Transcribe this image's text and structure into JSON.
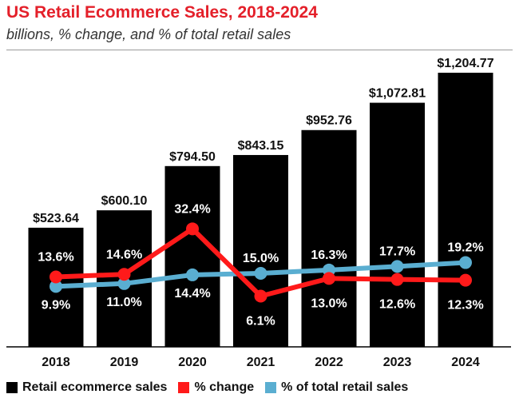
{
  "header": {
    "title": "US Retail Ecommerce Sales, 2018-2024",
    "subtitle": "billions, % change, and % of total retail sales"
  },
  "colors": {
    "bar": "#000000",
    "change_line": "#ff1a1a",
    "share_line": "#5aaed1",
    "title": "#e4202a"
  },
  "chart_data": {
    "type": "bar",
    "title": "US Retail Ecommerce Sales, 2018-2024",
    "subtitle": "billions, % change, and % of total retail sales",
    "categories": [
      "2018",
      "2019",
      "2020",
      "2021",
      "2022",
      "2023",
      "2024"
    ],
    "series": [
      {
        "name": "Retail ecommerce sales",
        "type": "bar",
        "values": [
          523.64,
          600.1,
          794.5,
          843.15,
          952.76,
          1072.81,
          1204.77
        ],
        "labels": [
          "$523.64",
          "$600.10",
          "$794.50",
          "$843.15",
          "$952.76",
          "$1,072.81",
          "$1,204.77"
        ]
      },
      {
        "name": "% change",
        "type": "line",
        "values": [
          13.6,
          14.6,
          32.4,
          6.1,
          13.0,
          12.6,
          12.3
        ],
        "labels": [
          "13.6%",
          "14.6%",
          "32.4%",
          "6.1%",
          "13.0%",
          "12.6%",
          "12.3%"
        ]
      },
      {
        "name": "% of total retail sales",
        "type": "line",
        "values": [
          9.9,
          11.0,
          14.4,
          15.0,
          16.3,
          17.7,
          19.2
        ],
        "labels": [
          "9.9%",
          "11.0%",
          "14.4%",
          "15.0%",
          "16.3%",
          "17.7%",
          "19.2%"
        ]
      }
    ],
    "legend": [
      "Retail ecommerce sales",
      "% change",
      "% of total retail sales"
    ],
    "legend_position": "bottom",
    "grid": false
  }
}
